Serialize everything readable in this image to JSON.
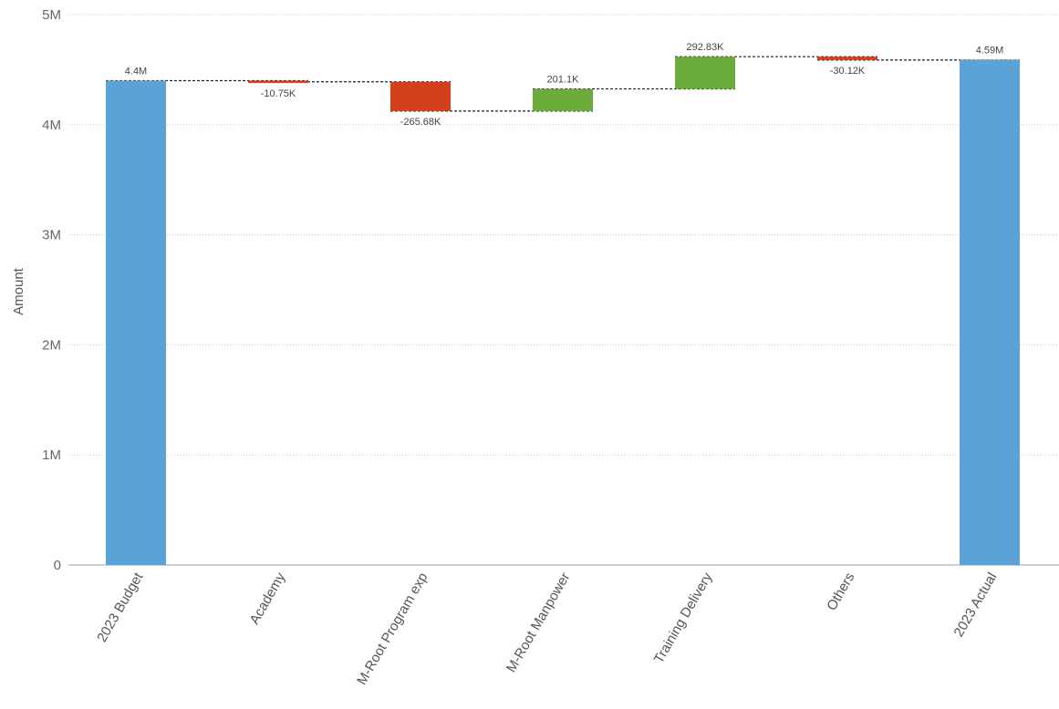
{
  "chart_data": {
    "type": "waterfall",
    "title": "",
    "xlabel": "",
    "ylabel": "Amount",
    "ylim": [
      0,
      5000000
    ],
    "grid": true,
    "legend": "none",
    "y_ticks": [
      {
        "value": 0,
        "label": "0"
      },
      {
        "value": 1000000,
        "label": "1M"
      },
      {
        "value": 2000000,
        "label": "2M"
      },
      {
        "value": 3000000,
        "label": "3M"
      },
      {
        "value": 4000000,
        "label": "4M"
      },
      {
        "value": 5000000,
        "label": "5M"
      }
    ],
    "categories": [
      "2023 Budget",
      "Academy",
      "M-Root Program exp",
      "M-Root Manpower",
      "Training Delivery",
      "Others",
      "2023 Actual"
    ],
    "steps": [
      {
        "category": "2023 Budget",
        "kind": "total",
        "value": 4400000,
        "label": "4.4M"
      },
      {
        "category": "Academy",
        "kind": "delta",
        "value": -10750,
        "label": "-10.75K"
      },
      {
        "category": "M-Root Program exp",
        "kind": "delta",
        "value": -265680,
        "label": "-265.68K"
      },
      {
        "category": "M-Root Manpower",
        "kind": "delta",
        "value": 201100,
        "label": "201.1K"
      },
      {
        "category": "Training Delivery",
        "kind": "delta",
        "value": 292830,
        "label": "292.83K"
      },
      {
        "category": "Others",
        "kind": "delta",
        "value": -30120,
        "label": "-30.12K"
      },
      {
        "category": "2023 Actual",
        "kind": "total",
        "value": 4590000,
        "label": "4.59M"
      }
    ],
    "colors": {
      "total": "#5ba3d6",
      "increase": "#6aab3b",
      "decrease": "#d2401c"
    }
  }
}
